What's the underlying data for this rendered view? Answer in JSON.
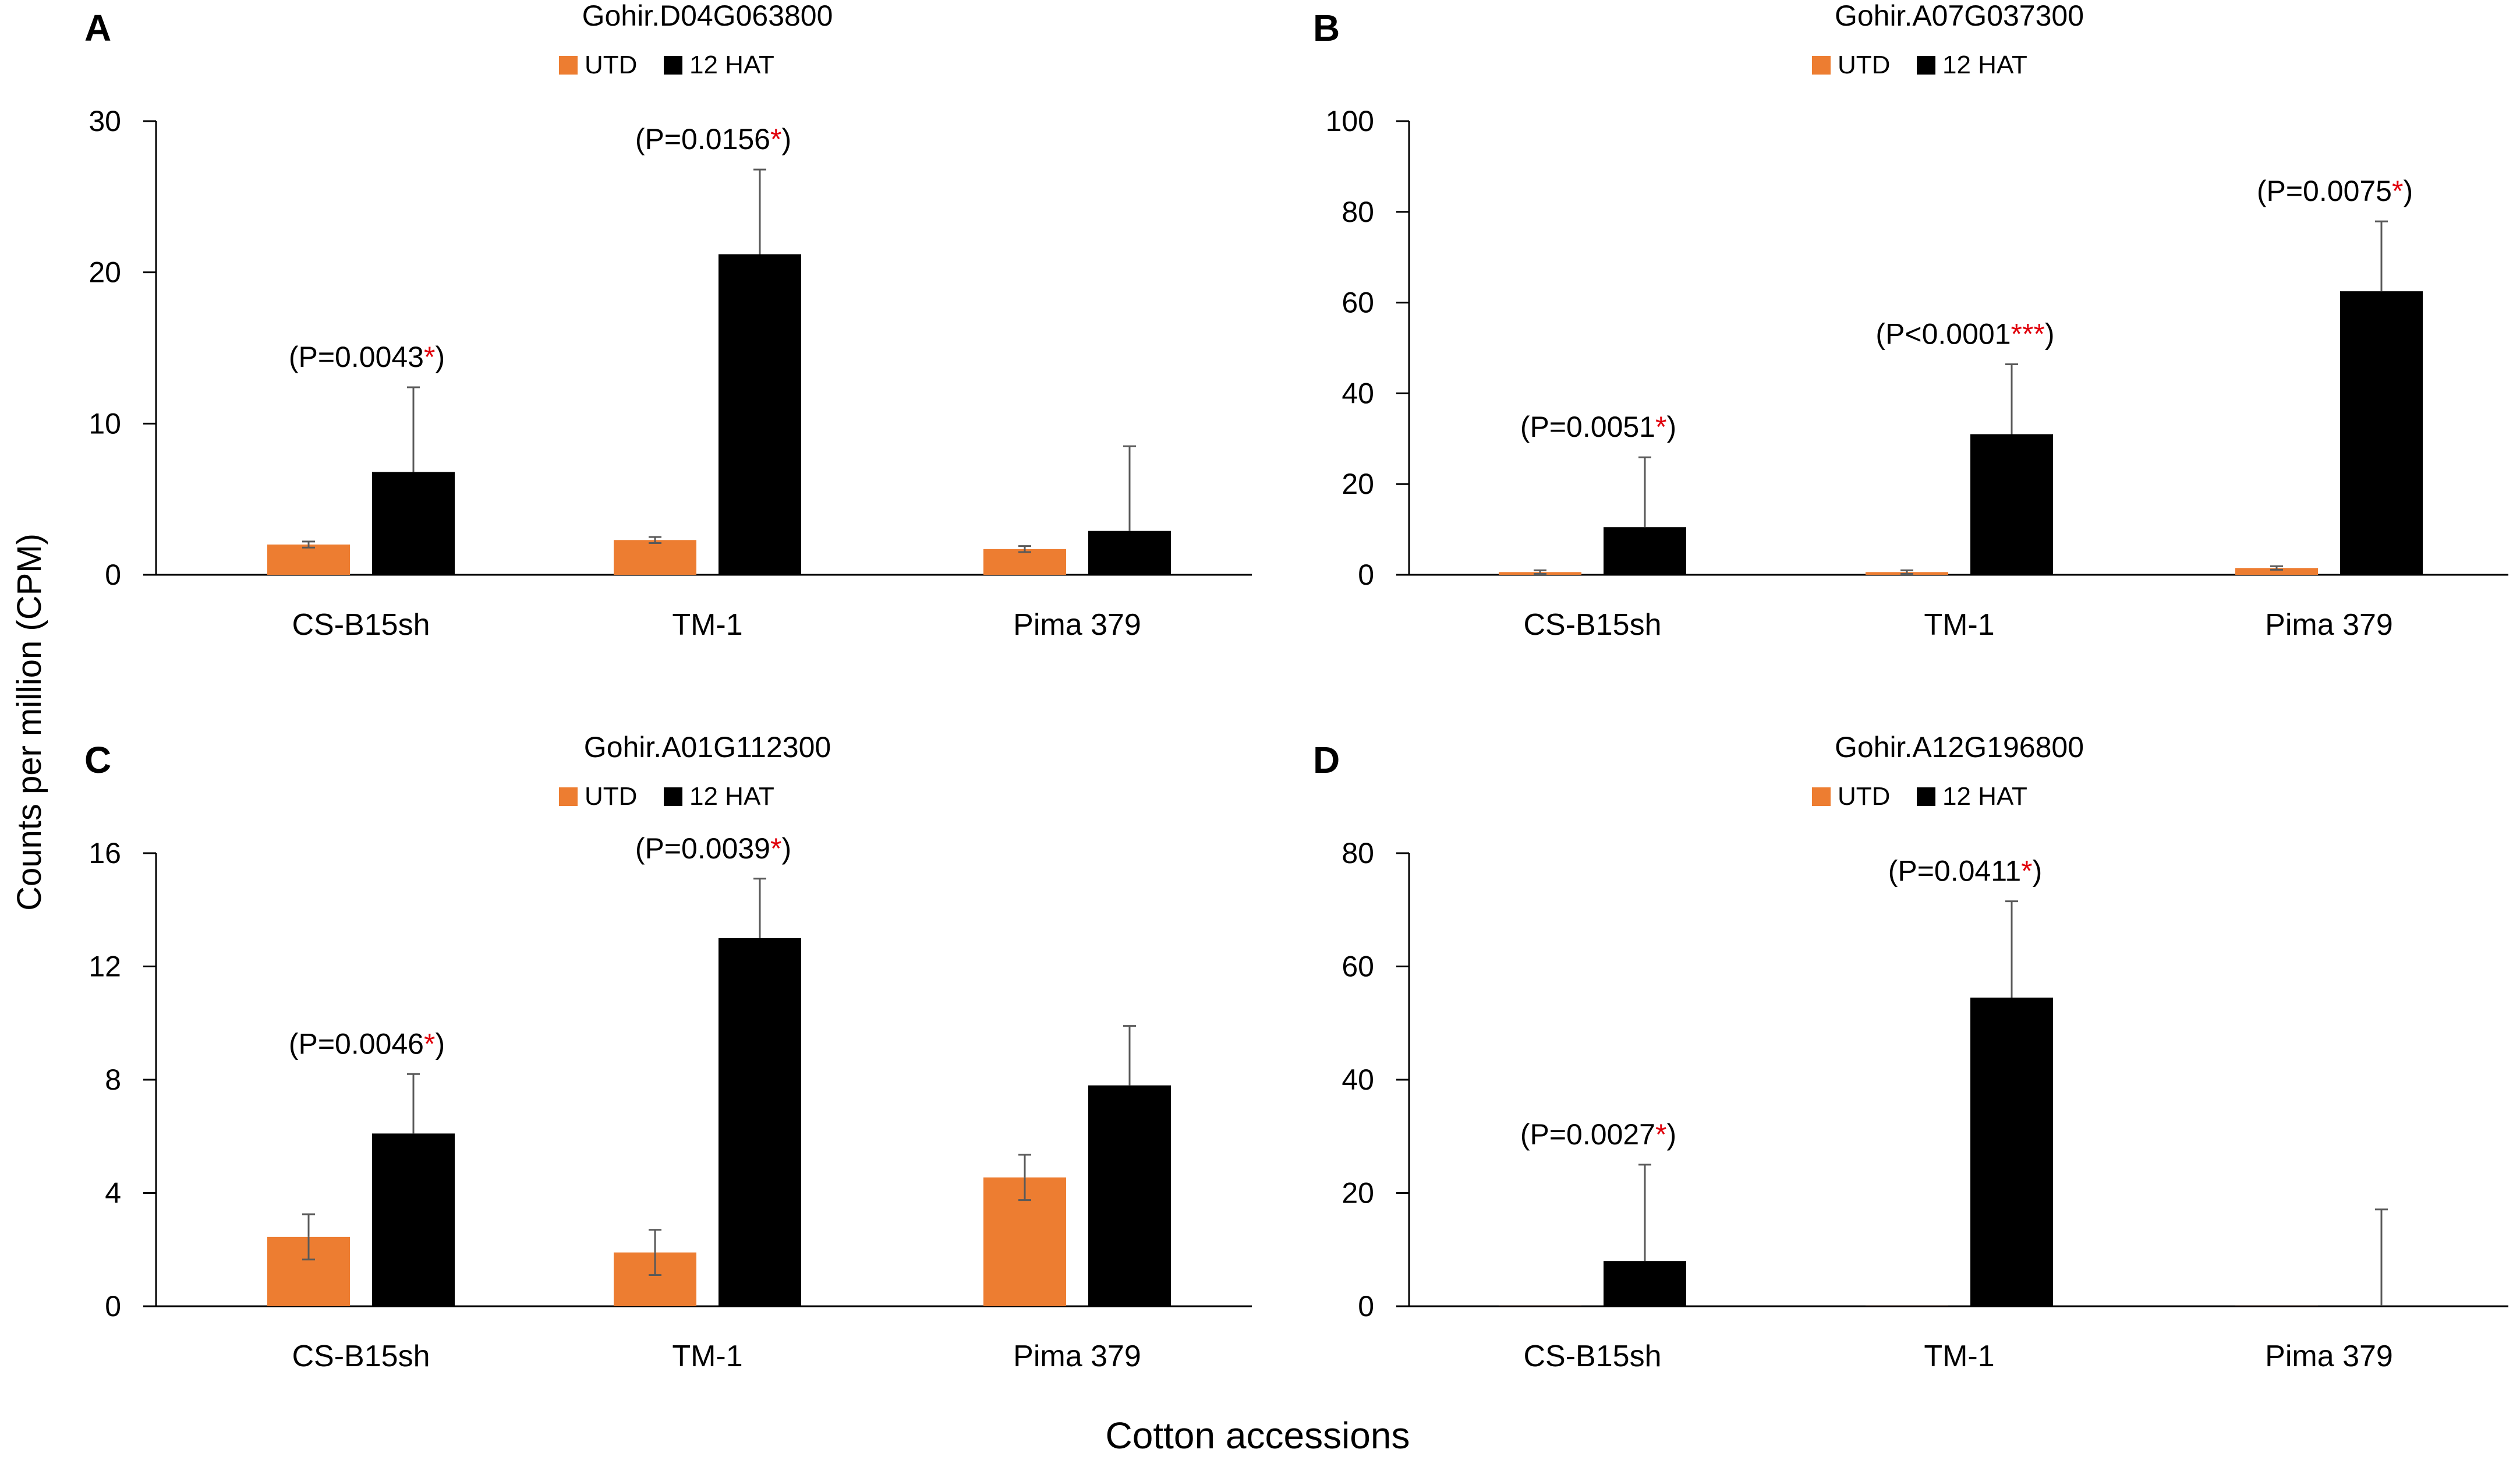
{
  "figure": {
    "y_axis_label": "Counts per million (CPM)",
    "x_axis_label": "Cotton accessions"
  },
  "colors": {
    "utd": "#ED7D31",
    "hat": "#000000",
    "significance": "#E0000B",
    "axis": "#000000",
    "error_bar": "#595959"
  },
  "chart_data": [
    {
      "panel": "A",
      "type": "bar",
      "title": "Gohir.D04G063800",
      "legend": [
        "UTD",
        "12 HAT"
      ],
      "categories": [
        "CS-B15sh",
        "TM-1",
        "Pima 379"
      ],
      "ylim": [
        0,
        30
      ],
      "yticks": [
        "0",
        "10",
        "20",
        "30"
      ],
      "series": [
        {
          "name": "UTD",
          "values": [
            2.0,
            2.3,
            1.7
          ],
          "errors": [
            0.2,
            0.2,
            0.2
          ]
        },
        {
          "name": "12 HAT",
          "values": [
            6.8,
            21.2,
            2.9
          ],
          "errors": [
            5.6,
            5.6,
            5.6
          ]
        }
      ],
      "annotations": [
        {
          "category": "CS-B15sh",
          "prefix": "(P=0.0043",
          "stars": "*",
          "suffix": ")"
        },
        {
          "category": "TM-1",
          "prefix": "(P=0.0156",
          "stars": "*",
          "suffix": ")"
        }
      ]
    },
    {
      "panel": "B",
      "type": "bar",
      "title": "Gohir.A07G037300",
      "legend": [
        "UTD",
        "12 HAT"
      ],
      "categories": [
        "CS-B15sh",
        "TM-1",
        "Pima 379"
      ],
      "ylim": [
        0,
        100
      ],
      "yticks": [
        "0",
        "20",
        "40",
        "60",
        "80",
        "100"
      ],
      "series": [
        {
          "name": "UTD",
          "values": [
            0.6,
            0.6,
            1.5
          ],
          "errors": [
            0.4,
            0.4,
            0.4
          ]
        },
        {
          "name": "12 HAT",
          "values": [
            10.5,
            31.0,
            62.5
          ],
          "errors": [
            15.4,
            15.4,
            15.4
          ]
        }
      ],
      "annotations": [
        {
          "category": "CS-B15sh",
          "prefix": "(P=0.0051",
          "stars": "*",
          "suffix": ")"
        },
        {
          "category": "TM-1",
          "prefix": "(P<0.0001",
          "stars": "***",
          "suffix": ")"
        },
        {
          "category": "Pima 379",
          "prefix": "(P=0.0075",
          "stars": "*",
          "suffix": ")"
        }
      ]
    },
    {
      "panel": "C",
      "type": "bar",
      "title": "Gohir.A01G112300",
      "legend": [
        "UTD",
        "12 HAT"
      ],
      "categories": [
        "CS-B15sh",
        "TM-1",
        "Pima 379"
      ],
      "ylim": [
        0,
        16
      ],
      "yticks": [
        "0",
        "4",
        "8",
        "12",
        "16"
      ],
      "series": [
        {
          "name": "UTD",
          "values": [
            2.45,
            1.9,
            4.55
          ],
          "errors": [
            0.8,
            0.8,
            0.8
          ]
        },
        {
          "name": "12 HAT",
          "values": [
            6.1,
            13.0,
            7.8
          ],
          "errors": [
            2.1,
            2.1,
            2.1
          ]
        }
      ],
      "annotations": [
        {
          "category": "CS-B15sh",
          "prefix": "(P=0.0046",
          "stars": "*",
          "suffix": ")"
        },
        {
          "category": "TM-1",
          "prefix": "(P=0.0039",
          "stars": "*",
          "suffix": ")"
        }
      ]
    },
    {
      "panel": "D",
      "type": "bar",
      "title": "Gohir.A12G196800",
      "legend": [
        "UTD",
        "12 HAT"
      ],
      "categories": [
        "CS-B15sh",
        "TM-1",
        "Pima 379"
      ],
      "ylim": [
        0,
        80
      ],
      "yticks": [
        "0",
        "20",
        "40",
        "60",
        "80"
      ],
      "series": [
        {
          "name": "UTD",
          "values": [
            0.05,
            0.05,
            0.05
          ],
          "errors": [
            0.0,
            0.0,
            0.0
          ]
        },
        {
          "name": "12 HAT",
          "values": [
            8.0,
            54.5,
            0.1
          ],
          "errors": [
            17.0,
            17.0,
            17.0
          ]
        }
      ],
      "annotations": [
        {
          "category": "CS-B15sh",
          "prefix": "(P=0.0027",
          "stars": "*",
          "suffix": ")"
        },
        {
          "category": "TM-1",
          "prefix": "(P=0.0411",
          "stars": "*",
          "suffix": ")"
        }
      ]
    }
  ]
}
